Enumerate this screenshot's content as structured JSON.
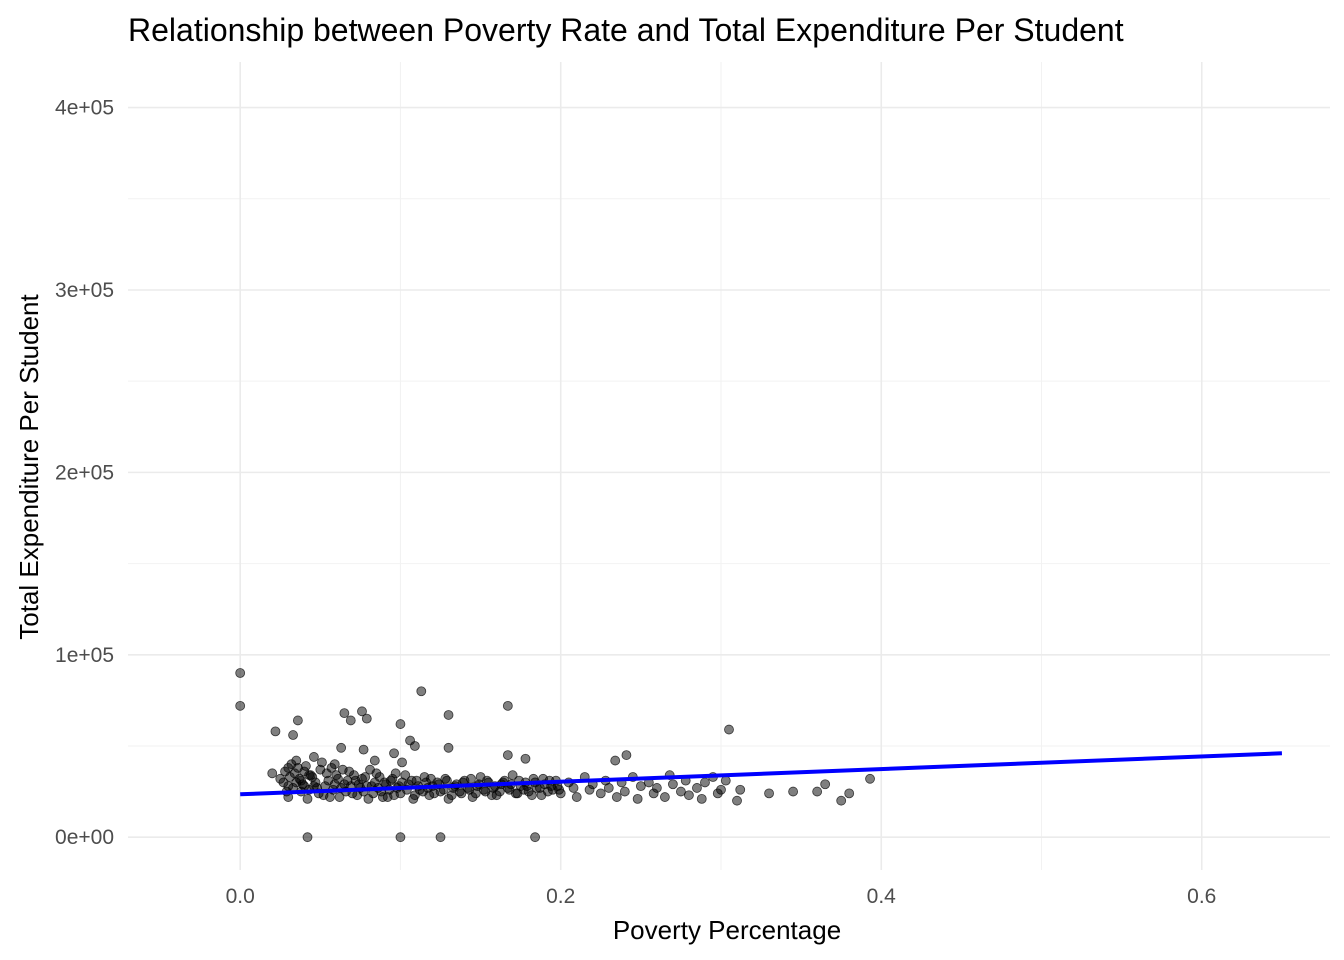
{
  "chart_data": {
    "type": "scatter",
    "title": "Relationship between Poverty Rate and Total Expenditure Per Student",
    "xlabel": "Poverty Percentage",
    "ylabel": "Total Expenditure Per Student",
    "xlim": [
      -0.07,
      0.68
    ],
    "ylim": [
      -18000,
      425000
    ],
    "x_ticks": [
      0.0,
      0.2,
      0.4,
      0.6
    ],
    "x_tick_labels": [
      "0.0",
      "0.2",
      "0.4",
      "0.6"
    ],
    "y_ticks": [
      0,
      100000,
      200000,
      300000,
      400000
    ],
    "y_tick_labels": [
      "0e+00",
      "1e+05",
      "2e+05",
      "3e+05",
      "4e+05"
    ],
    "grid": true,
    "point_color": "#000000",
    "point_opacity": 0.5,
    "trend_line": {
      "type": "linear",
      "color": "#0000ff",
      "x": [
        0.0,
        0.65
      ],
      "y": [
        23500,
        46000
      ]
    },
    "series": [
      {
        "points": [
          [
            0.0,
            90000
          ],
          [
            0.0,
            72000
          ],
          [
            0.042,
            0
          ],
          [
            0.1,
            0
          ],
          [
            0.125,
            0
          ],
          [
            0.184,
            0
          ],
          [
            0.113,
            80000
          ],
          [
            0.167,
            72000
          ],
          [
            0.305,
            59000
          ],
          [
            0.065,
            68000
          ],
          [
            0.076,
            69000
          ],
          [
            0.036,
            64000
          ],
          [
            0.069,
            64000
          ],
          [
            0.079,
            65000
          ],
          [
            0.13,
            67000
          ],
          [
            0.1,
            62000
          ],
          [
            0.022,
            58000
          ],
          [
            0.033,
            56000
          ],
          [
            0.106,
            53000
          ],
          [
            0.063,
            49000
          ],
          [
            0.077,
            48000
          ],
          [
            0.13,
            49000
          ],
          [
            0.109,
            50000
          ],
          [
            0.096,
            46000
          ],
          [
            0.167,
            45000
          ],
          [
            0.178,
            43000
          ],
          [
            0.241,
            45000
          ],
          [
            0.234,
            42000
          ],
          [
            0.046,
            44000
          ],
          [
            0.084,
            42000
          ],
          [
            0.101,
            41000
          ],
          [
            0.059,
            40000
          ],
          [
            0.02,
            35000
          ],
          [
            0.025,
            32000
          ],
          [
            0.03,
            38000
          ],
          [
            0.03,
            28000
          ],
          [
            0.03,
            22000
          ],
          [
            0.035,
            42000
          ],
          [
            0.035,
            30000
          ],
          [
            0.038,
            25000
          ],
          [
            0.04,
            36000
          ],
          [
            0.042,
            21000
          ],
          [
            0.045,
            33000
          ],
          [
            0.048,
            27000
          ],
          [
            0.05,
            37000
          ],
          [
            0.052,
            23000
          ],
          [
            0.055,
            31000
          ],
          [
            0.058,
            26000
          ],
          [
            0.06,
            34000
          ],
          [
            0.062,
            22000
          ],
          [
            0.065,
            29000
          ],
          [
            0.068,
            36000
          ],
          [
            0.07,
            24000
          ],
          [
            0.072,
            31000
          ],
          [
            0.075,
            27000
          ],
          [
            0.078,
            33000
          ],
          [
            0.08,
            21000
          ],
          [
            0.082,
            28000
          ],
          [
            0.085,
            35000
          ],
          [
            0.088,
            25000
          ],
          [
            0.09,
            30000
          ],
          [
            0.092,
            22000
          ],
          [
            0.095,
            32000
          ],
          [
            0.098,
            27000
          ],
          [
            0.1,
            24000
          ],
          [
            0.103,
            34000
          ],
          [
            0.105,
            29000
          ],
          [
            0.108,
            21000
          ],
          [
            0.11,
            31000
          ],
          [
            0.112,
            26000
          ],
          [
            0.115,
            33000
          ],
          [
            0.118,
            23000
          ],
          [
            0.12,
            28000
          ],
          [
            0.123,
            30000
          ],
          [
            0.125,
            25000
          ],
          [
            0.128,
            32000
          ],
          [
            0.13,
            21000
          ],
          [
            0.133,
            27000
          ],
          [
            0.135,
            29000
          ],
          [
            0.138,
            24000
          ],
          [
            0.14,
            31000
          ],
          [
            0.143,
            26000
          ],
          [
            0.145,
            22000
          ],
          [
            0.148,
            28000
          ],
          [
            0.15,
            33000
          ],
          [
            0.153,
            25000
          ],
          [
            0.155,
            30000
          ],
          [
            0.158,
            27000
          ],
          [
            0.16,
            23000
          ],
          [
            0.163,
            29000
          ],
          [
            0.165,
            31000
          ],
          [
            0.168,
            26000
          ],
          [
            0.17,
            34000
          ],
          [
            0.173,
            24000
          ],
          [
            0.175,
            28000
          ],
          [
            0.178,
            30000
          ],
          [
            0.18,
            25000
          ],
          [
            0.183,
            32000
          ],
          [
            0.185,
            27000
          ],
          [
            0.188,
            23000
          ],
          [
            0.19,
            29000
          ],
          [
            0.193,
            31000
          ],
          [
            0.195,
            26000
          ],
          [
            0.198,
            28000
          ],
          [
            0.2,
            24000
          ],
          [
            0.205,
            30000
          ],
          [
            0.208,
            27000
          ],
          [
            0.21,
            22000
          ],
          [
            0.215,
            33000
          ],
          [
            0.218,
            26000
          ],
          [
            0.22,
            29000
          ],
          [
            0.225,
            24000
          ],
          [
            0.228,
            31000
          ],
          [
            0.23,
            27000
          ],
          [
            0.235,
            22000
          ],
          [
            0.238,
            30000
          ],
          [
            0.24,
            25000
          ],
          [
            0.245,
            33000
          ],
          [
            0.248,
            21000
          ],
          [
            0.25,
            28000
          ],
          [
            0.255,
            30000
          ],
          [
            0.258,
            24000
          ],
          [
            0.26,
            27000
          ],
          [
            0.265,
            22000
          ],
          [
            0.268,
            34000
          ],
          [
            0.27,
            29000
          ],
          [
            0.275,
            25000
          ],
          [
            0.278,
            31000
          ],
          [
            0.28,
            23000
          ],
          [
            0.285,
            27000
          ],
          [
            0.288,
            21000
          ],
          [
            0.29,
            30000
          ],
          [
            0.295,
            33000
          ],
          [
            0.298,
            24000
          ],
          [
            0.3,
            26000
          ],
          [
            0.303,
            31000
          ],
          [
            0.31,
            20000
          ],
          [
            0.312,
            26000
          ],
          [
            0.33,
            24000
          ],
          [
            0.345,
            25000
          ],
          [
            0.36,
            25000
          ],
          [
            0.365,
            29000
          ],
          [
            0.375,
            20000
          ],
          [
            0.38,
            24000
          ],
          [
            0.393,
            32000
          ],
          [
            0.032,
            40000
          ],
          [
            0.034,
            35000
          ],
          [
            0.037,
            32000
          ],
          [
            0.039,
            29000
          ],
          [
            0.041,
            39000
          ],
          [
            0.043,
            26000
          ],
          [
            0.044,
            34000
          ],
          [
            0.047,
            30000
          ],
          [
            0.049,
            24000
          ],
          [
            0.051,
            41000
          ],
          [
            0.053,
            28000
          ],
          [
            0.054,
            35000
          ],
          [
            0.056,
            22000
          ],
          [
            0.057,
            38000
          ],
          [
            0.059,
            29000
          ],
          [
            0.061,
            32000
          ],
          [
            0.063,
            27000
          ],
          [
            0.064,
            37000
          ],
          [
            0.066,
            25000
          ],
          [
            0.067,
            31000
          ],
          [
            0.069,
            28000
          ],
          [
            0.071,
            34000
          ],
          [
            0.073,
            23000
          ],
          [
            0.074,
            29000
          ],
          [
            0.076,
            32000
          ],
          [
            0.077,
            25000
          ],
          [
            0.079,
            28000
          ],
          [
            0.081,
            37000
          ],
          [
            0.083,
            24000
          ],
          [
            0.084,
            30000
          ],
          [
            0.086,
            27000
          ],
          [
            0.087,
            33000
          ],
          [
            0.089,
            22000
          ],
          [
            0.091,
            29000
          ],
          [
            0.093,
            26000
          ],
          [
            0.094,
            31000
          ],
          [
            0.096,
            23000
          ],
          [
            0.097,
            35000
          ],
          [
            0.099,
            28000
          ],
          [
            0.101,
            30000
          ],
          [
            0.104,
            26000
          ],
          [
            0.107,
            31000
          ],
          [
            0.109,
            23000
          ],
          [
            0.111,
            28000
          ],
          [
            0.114,
            25000
          ],
          [
            0.116,
            30000
          ],
          [
            0.117,
            27000
          ],
          [
            0.119,
            32000
          ],
          [
            0.121,
            24000
          ],
          [
            0.124,
            29000
          ],
          [
            0.127,
            26000
          ],
          [
            0.129,
            31000
          ],
          [
            0.132,
            23000
          ],
          [
            0.134,
            28000
          ],
          [
            0.137,
            25000
          ],
          [
            0.139,
            30000
          ],
          [
            0.142,
            27000
          ],
          [
            0.144,
            32000
          ],
          [
            0.147,
            24000
          ],
          [
            0.149,
            29000
          ],
          [
            0.152,
            26000
          ],
          [
            0.154,
            31000
          ],
          [
            0.157,
            23000
          ],
          [
            0.159,
            28000
          ],
          [
            0.162,
            25000
          ],
          [
            0.164,
            30000
          ],
          [
            0.167,
            27000
          ],
          [
            0.169,
            29000
          ],
          [
            0.172,
            24000
          ],
          [
            0.174,
            31000
          ],
          [
            0.177,
            26000
          ],
          [
            0.179,
            28000
          ],
          [
            0.182,
            23000
          ],
          [
            0.184,
            30000
          ],
          [
            0.187,
            27000
          ],
          [
            0.189,
            32000
          ],
          [
            0.192,
            25000
          ],
          [
            0.194,
            28000
          ],
          [
            0.197,
            31000
          ],
          [
            0.199,
            26000
          ],
          [
            0.027,
            30000
          ],
          [
            0.028,
            36000
          ],
          [
            0.029,
            25000
          ],
          [
            0.031,
            33000
          ],
          [
            0.033,
            27000
          ],
          [
            0.036,
            38000
          ],
          [
            0.038,
            31000
          ],
          [
            0.04,
            28000
          ],
          [
            0.043,
            34000
          ],
          [
            0.046,
            28000
          ]
        ]
      }
    ]
  }
}
